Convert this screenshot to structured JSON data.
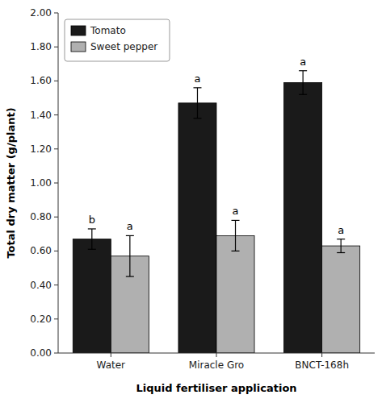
{
  "chart_data": {
    "type": "bar",
    "categories": [
      "Water",
      "Miracle Gro",
      "BNCT-168h"
    ],
    "series": [
      {
        "name": "Tomato",
        "color": "#1a1a1a",
        "values": [
          0.67,
          1.47,
          1.59
        ],
        "errors": [
          0.06,
          0.09,
          0.07
        ],
        "annotations": [
          "b",
          "a",
          "a"
        ]
      },
      {
        "name": "Sweet pepper",
        "color": "#b0b0b0",
        "values": [
          0.57,
          0.69,
          0.63
        ],
        "errors": [
          0.12,
          0.09,
          0.04
        ],
        "annotations": [
          "a",
          "a",
          "a"
        ]
      }
    ],
    "xlabel": "Liquid fertiliser application",
    "ylabel": "Total dry matter (g/plant)",
    "ylim": [
      0.0,
      2.0
    ],
    "yticks": [
      {
        "value": 0.0,
        "label": "0.00"
      },
      {
        "value": 0.2,
        "label": "0.20"
      },
      {
        "value": 0.4,
        "label": "0.40"
      },
      {
        "value": 0.6,
        "label": "0.60"
      },
      {
        "value": 0.8,
        "label": "0.80"
      },
      {
        "value": 1.0,
        "label": "1.00"
      },
      {
        "value": 1.2,
        "label": "1.20"
      },
      {
        "value": 1.4,
        "label": "1.40"
      },
      {
        "value": 1.6,
        "label": "1.60"
      },
      {
        "value": 1.8,
        "label": "1.80"
      },
      {
        "value": 2.0,
        "label": "2.00"
      }
    ],
    "legend": "upper left",
    "grid": false
  }
}
